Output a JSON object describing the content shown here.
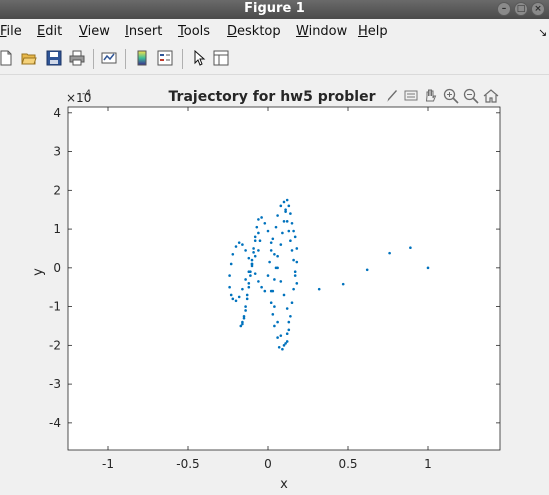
{
  "window": {
    "title": "Figure 1"
  },
  "menu": {
    "items": [
      {
        "label": "File",
        "u": "F",
        "rest": "ile"
      },
      {
        "label": "Edit",
        "u": "E",
        "rest": "dit"
      },
      {
        "label": "View",
        "u": "V",
        "rest": "iew"
      },
      {
        "label": "Insert",
        "u": "I",
        "rest": "nsert"
      },
      {
        "label": "Tools",
        "u": "T",
        "rest": "ools"
      },
      {
        "label": "Desktop",
        "u": "D",
        "rest": "esktop"
      },
      {
        "label": "Window",
        "u": "W",
        "rest": "indow"
      },
      {
        "label": "Help",
        "u": "H",
        "rest": "elp"
      }
    ]
  },
  "toolbar": {
    "icons": [
      "new-figure-icon",
      "open-file-icon",
      "save-icon",
      "print-icon",
      "link-plot-icon",
      "insert-colorbar-icon",
      "insert-legend-icon",
      "edit-plot-pointer-icon",
      "property-inspector-icon"
    ]
  },
  "axes_toolbar": {
    "icons": [
      "brush-icon",
      "data-tips-icon",
      "pan-hand-icon",
      "zoom-in-icon",
      "zoom-out-icon",
      "home-icon"
    ]
  },
  "colors": {
    "marker": "#0072bd",
    "axes_bg": "#ffffff",
    "figure_bg": "#f0f0f0"
  },
  "chart_data": {
    "type": "scatter",
    "title": "Trajectory for hw5 probler",
    "xlabel": "x",
    "ylabel": "y",
    "y_exponent_label": "×10",
    "y_exponent": "-4",
    "xlim": [
      -1.25,
      1.45
    ],
    "ylim": [
      -4.7,
      4.15
    ],
    "xticks": [
      -1,
      -0.5,
      0,
      0.5,
      1
    ],
    "xtick_labels": [
      "-1",
      "-0.5",
      "0",
      "0.5",
      "1"
    ],
    "yticks": [
      -4,
      -3,
      -2,
      -1,
      0,
      1,
      2,
      3,
      4
    ],
    "ytick_labels": [
      "-4",
      "-3",
      "-2",
      "-1",
      "0",
      "1",
      "2",
      "3",
      "4"
    ],
    "grid": false,
    "marker": "dot",
    "x": [
      1.0,
      0.89,
      0.76,
      0.62,
      0.47,
      0.32,
      0.18,
      0.17,
      0.16,
      0.15,
      0.14,
      0.13,
      0.12,
      0.11,
      0.1,
      0.08,
      0.06,
      0.05,
      0.03,
      0.02,
      0.01,
      0.0,
      0.02,
      0.04,
      0.06,
      0.08,
      0.1,
      0.12,
      0.13,
      0.14,
      0.15,
      0.16,
      0.17,
      0.18,
      0.18,
      0.17,
      0.16,
      0.15,
      0.14,
      0.13,
      0.12,
      0.11,
      0.1,
      0.09,
      0.08,
      0.06,
      0.05,
      0.04,
      0.03,
      0.02,
      0.03,
      0.04,
      0.06,
      0.07,
      0.09,
      0.11,
      0.12,
      0.13,
      0.12,
      0.1,
      0.08,
      0.06,
      0.04,
      0.02,
      0.0,
      -0.02,
      -0.04,
      -0.06,
      -0.07,
      -0.08,
      -0.09,
      -0.1,
      -0.11,
      -0.12,
      -0.13,
      -0.14,
      -0.15,
      -0.16,
      -0.17,
      -0.16,
      -0.15,
      -0.14,
      -0.13,
      -0.12,
      -0.11,
      -0.1,
      -0.09,
      -0.08,
      -0.06,
      -0.05,
      -0.06,
      -0.08,
      -0.1,
      -0.12,
      -0.14,
      -0.16,
      -0.18,
      -0.2,
      -0.22,
      -0.23,
      -0.24,
      -0.24,
      -0.23,
      -0.22,
      -0.2,
      -0.18,
      -0.16,
      -0.14,
      -0.12,
      -0.1,
      -0.08,
      -0.06,
      -0.04,
      -0.02
    ],
    "y": [
      0.0,
      0.52,
      0.38,
      -0.05,
      -0.42,
      -0.55,
      -0.4,
      -0.1,
      0.2,
      0.45,
      0.7,
      0.95,
      1.2,
      1.45,
      1.7,
      1.6,
      1.35,
      1.05,
      0.75,
      0.45,
      0.15,
      -0.2,
      -0.6,
      -1.0,
      -1.4,
      -1.75,
      -2.0,
      -1.9,
      -1.6,
      -1.25,
      -0.9,
      -0.55,
      -0.2,
      0.15,
      0.5,
      0.8,
      0.95,
      1.15,
      1.4,
      1.6,
      1.75,
      1.5,
      1.2,
      0.9,
      0.6,
      0.3,
      0.0,
      -0.3,
      -0.6,
      -0.9,
      -1.2,
      -1.5,
      -1.8,
      -2.05,
      -2.1,
      -1.95,
      -1.7,
      -1.4,
      -1.05,
      -0.7,
      -0.35,
      0.0,
      0.35,
      0.65,
      0.95,
      1.15,
      1.3,
      1.25,
      1.05,
      0.8,
      0.5,
      0.2,
      -0.1,
      -0.4,
      -0.7,
      -1.0,
      -1.25,
      -1.45,
      -1.5,
      -1.4,
      -1.3,
      -1.1,
      -0.8,
      -0.5,
      -0.2,
      0.1,
      0.4,
      0.7,
      0.9,
      0.7,
      0.45,
      0.3,
      0.1,
      -0.1,
      -0.3,
      -0.55,
      -0.75,
      -0.85,
      -0.8,
      -0.7,
      -0.5,
      -0.2,
      0.1,
      0.35,
      0.55,
      0.65,
      0.6,
      0.45,
      0.25,
      0.05,
      -0.15,
      -0.35,
      -0.5,
      -0.6
    ]
  }
}
